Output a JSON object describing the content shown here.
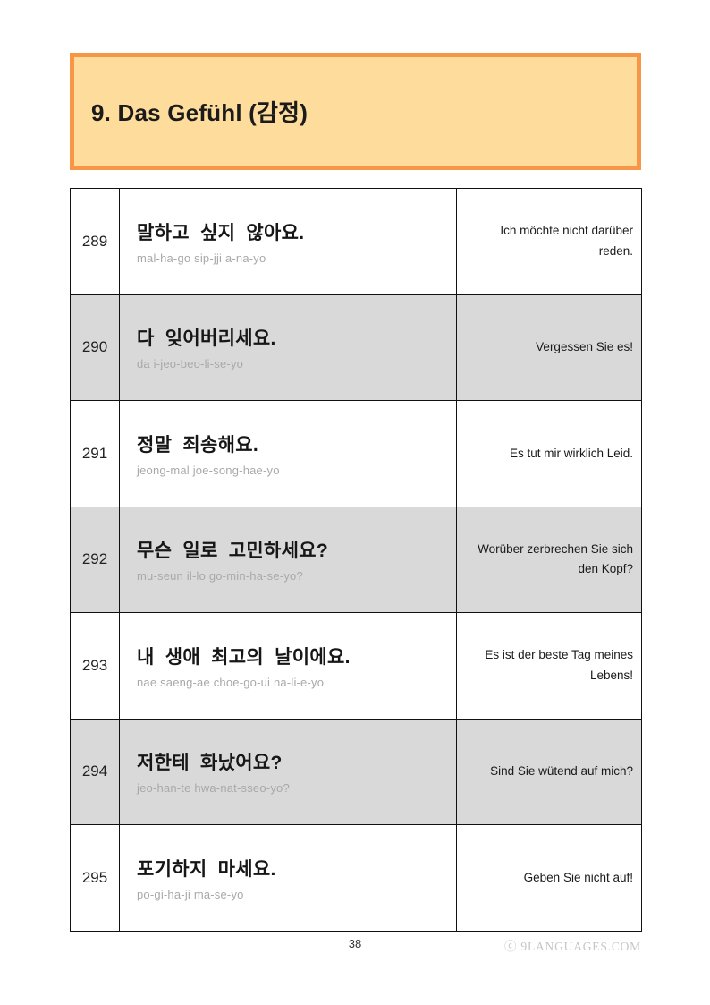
{
  "header": {
    "title": "9. Das Gefühl (감정)"
  },
  "table": {
    "rows": [
      {
        "num": "289",
        "korean": "말하고 싶지 않아요.",
        "roman": "mal-ha-go sip-jji a-na-yo",
        "german": "Ich möchte nicht darüber reden."
      },
      {
        "num": "290",
        "korean": "다 잊어버리세요.",
        "roman": "da i-jeo-beo-li-se-yo",
        "german": "Vergessen Sie es!"
      },
      {
        "num": "291",
        "korean": "정말 죄송해요.",
        "roman": "jeong-mal joe-song-hae-yo",
        "german": "Es tut mir wirklich Leid."
      },
      {
        "num": "292",
        "korean": "무슨 일로 고민하세요?",
        "roman": "mu-seun il-lo go-min-ha-se-yo?",
        "german": "Worüber zerbrechen Sie sich den Kopf?"
      },
      {
        "num": "293",
        "korean": "내 생애 최고의 날이에요.",
        "roman": "nae saeng-ae choe-go-ui na-li-e-yo",
        "german": "Es ist der beste Tag meines Lebens!"
      },
      {
        "num": "294",
        "korean": "저한테 화났어요?",
        "roman": "jeo-han-te hwa-nat-sseo-yo?",
        "german": "Sind Sie wütend auf mich?"
      },
      {
        "num": "295",
        "korean": "포기하지 마세요.",
        "roman": "po-gi-ha-ji ma-se-yo",
        "german": "Geben Sie nicht auf!"
      }
    ]
  },
  "footer": {
    "page_number": "38",
    "copyright": "ⓒ 9LANGUAGES.COM"
  },
  "colors": {
    "header_border": "#F79646",
    "header_fill": "#FEDC9C",
    "shaded_row": "#D9D9D9",
    "romanization_text": "#A9A9A9"
  }
}
